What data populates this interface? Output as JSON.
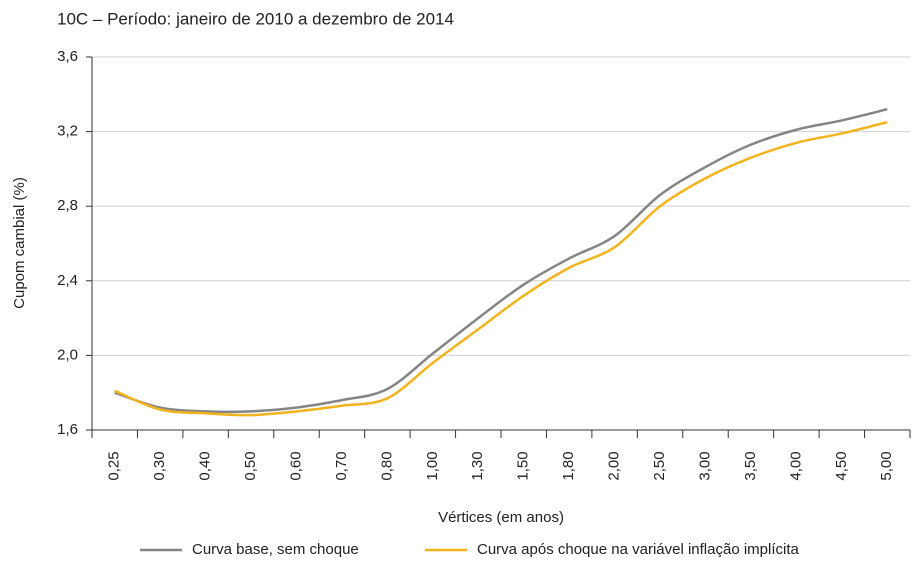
{
  "chart_data": {
    "type": "line",
    "title": "10C – Período: janeiro de 2010 a dezembro de 2014",
    "x_label": "Vértices (em anos)",
    "y_label": "Cupom cambial (%)",
    "categories": [
      "0,25",
      "0,30",
      "0,40",
      "0,50",
      "0,60",
      "0,70",
      "0,80",
      "1,00",
      "1,30",
      "1,50",
      "1,80",
      "2,00",
      "2,50",
      "3,00",
      "3,50",
      "4,00",
      "4,50",
      "5,00"
    ],
    "series": [
      {
        "name": "Curva base, sem choque",
        "color": "#858585",
        "values": [
          1.8,
          1.72,
          1.7,
          1.7,
          1.72,
          1.76,
          1.82,
          2.01,
          2.2,
          2.38,
          2.52,
          2.64,
          2.86,
          3.01,
          3.13,
          3.21,
          3.26,
          3.32
        ]
      },
      {
        "name": "Curva após choque na variável inflação implícita",
        "color": "#f2b31c",
        "values": [
          1.81,
          1.71,
          1.69,
          1.68,
          1.7,
          1.73,
          1.77,
          1.96,
          2.14,
          2.32,
          2.47,
          2.58,
          2.8,
          2.95,
          3.06,
          3.14,
          3.19,
          3.25
        ]
      }
    ],
    "ylim": [
      1.6,
      3.6
    ],
    "yticks": [
      {
        "value": 1.6,
        "label": "1,6"
      },
      {
        "value": 2.0,
        "label": "2,0"
      },
      {
        "value": 2.4,
        "label": "2,4"
      },
      {
        "value": 2.8,
        "label": "2,8"
      },
      {
        "value": 3.2,
        "label": "3,2"
      },
      {
        "value": 3.6,
        "label": "3,6"
      }
    ],
    "grid": true
  }
}
